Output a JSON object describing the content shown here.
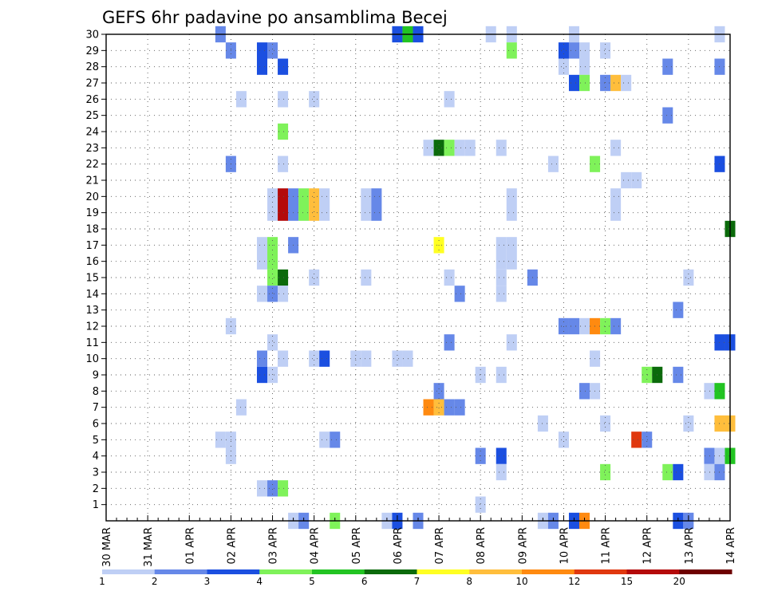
{
  "chart_data": {
    "type": "heatmap",
    "title": "GEFS 6hr padavine po ansamblima Becej",
    "xlabel": "",
    "ylabel": "",
    "x_ticks": [
      "30 MAR",
      "31 MAR",
      "01 APR",
      "02 APR",
      "03 APR",
      "04 APR",
      "05 APR",
      "06 APR",
      "07 APR",
      "08 APR",
      "09 APR",
      "10 APR",
      "11 APR",
      "12 APR",
      "13 APR",
      "14 APR"
    ],
    "time_steps": 60,
    "time_step_hours": 6,
    "y_range": [
      1,
      30
    ],
    "y_ticks": [
      1,
      2,
      3,
      4,
      5,
      6,
      7,
      8,
      9,
      10,
      11,
      12,
      13,
      14,
      15,
      16,
      17,
      18,
      19,
      20,
      21,
      22,
      23,
      24,
      25,
      26,
      27,
      28,
      29,
      30
    ],
    "grid": true,
    "legend_position": "bottom",
    "levels": [
      1,
      2,
      3,
      4,
      5,
      6,
      7,
      8,
      10,
      12,
      15,
      20
    ],
    "level_colors": [
      "#bfcff5",
      "#6688e8",
      "#1b4fe0",
      "#7ff25a",
      "#22c422",
      "#0b6a0b",
      "#ffff22",
      "#ffbe3c",
      "#ff8a10",
      "#e0380f",
      "#b40a0a",
      "#6e0000"
    ],
    "cells": [
      {
        "m": 30,
        "t": 11,
        "c": 2
      },
      {
        "m": 30,
        "t": 28,
        "c": 3
      },
      {
        "m": 30,
        "t": 29,
        "c": 5
      },
      {
        "m": 30,
        "t": 30,
        "c": 3
      },
      {
        "m": 30,
        "t": 37,
        "c": 1
      },
      {
        "m": 30,
        "t": 39,
        "c": 1
      },
      {
        "m": 30,
        "t": 45,
        "c": 1
      },
      {
        "m": 30,
        "t": 59,
        "c": 1
      },
      {
        "m": 29,
        "t": 12,
        "c": 2
      },
      {
        "m": 29,
        "t": 15,
        "c": 3
      },
      {
        "m": 29,
        "t": 16,
        "c": 2
      },
      {
        "m": 29,
        "t": 39,
        "c": 4
      },
      {
        "m": 29,
        "t": 44,
        "c": 3
      },
      {
        "m": 29,
        "t": 45,
        "c": 2
      },
      {
        "m": 29,
        "t": 46,
        "c": 1
      },
      {
        "m": 29,
        "t": 48,
        "c": 1
      },
      {
        "m": 28,
        "t": 15,
        "c": 3
      },
      {
        "m": 28,
        "t": 17,
        "c": 3
      },
      {
        "m": 28,
        "t": 44,
        "c": 1
      },
      {
        "m": 28,
        "t": 46,
        "c": 1
      },
      {
        "m": 28,
        "t": 54,
        "c": 2
      },
      {
        "m": 28,
        "t": 59,
        "c": 2
      },
      {
        "m": 27,
        "t": 45,
        "c": 3
      },
      {
        "m": 27,
        "t": 46,
        "c": 4
      },
      {
        "m": 27,
        "t": 48,
        "c": 2
      },
      {
        "m": 27,
        "t": 49,
        "c": 8
      },
      {
        "m": 27,
        "t": 50,
        "c": 1
      },
      {
        "m": 26,
        "t": 13,
        "c": 1
      },
      {
        "m": 26,
        "t": 17,
        "c": 1
      },
      {
        "m": 26,
        "t": 20,
        "c": 1
      },
      {
        "m": 26,
        "t": 33,
        "c": 1
      },
      {
        "m": 25,
        "t": 54,
        "c": 2
      },
      {
        "m": 24,
        "t": 17,
        "c": 4
      },
      {
        "m": 23,
        "t": 31,
        "c": 1
      },
      {
        "m": 23,
        "t": 32,
        "c": 6
      },
      {
        "m": 23,
        "t": 33,
        "c": 4
      },
      {
        "m": 23,
        "t": 34,
        "c": 1
      },
      {
        "m": 23,
        "t": 35,
        "c": 1
      },
      {
        "m": 23,
        "t": 38,
        "c": 1
      },
      {
        "m": 23,
        "t": 49,
        "c": 1
      },
      {
        "m": 22,
        "t": 12,
        "c": 2
      },
      {
        "m": 22,
        "t": 17,
        "c": 1
      },
      {
        "m": 22,
        "t": 43,
        "c": 1
      },
      {
        "m": 22,
        "t": 47,
        "c": 4
      },
      {
        "m": 22,
        "t": 59,
        "c": 3
      },
      {
        "m": 21,
        "t": 50,
        "c": 1
      },
      {
        "m": 21,
        "t": 51,
        "c": 1
      },
      {
        "m": 20,
        "t": 16,
        "c": 1
      },
      {
        "m": 20,
        "t": 17,
        "c": 11
      },
      {
        "m": 20,
        "t": 18,
        "c": 2
      },
      {
        "m": 20,
        "t": 19,
        "c": 4
      },
      {
        "m": 20,
        "t": 20,
        "c": 8
      },
      {
        "m": 20,
        "t": 21,
        "c": 1
      },
      {
        "m": 20,
        "t": 25,
        "c": 1
      },
      {
        "m": 20,
        "t": 26,
        "c": 2
      },
      {
        "m": 20,
        "t": 39,
        "c": 1
      },
      {
        "m": 20,
        "t": 49,
        "c": 1
      },
      {
        "m": 19,
        "t": 16,
        "c": 1
      },
      {
        "m": 19,
        "t": 17,
        "c": 11
      },
      {
        "m": 19,
        "t": 18,
        "c": 2
      },
      {
        "m": 19,
        "t": 19,
        "c": 4
      },
      {
        "m": 19,
        "t": 20,
        "c": 8
      },
      {
        "m": 19,
        "t": 21,
        "c": 1
      },
      {
        "m": 19,
        "t": 25,
        "c": 1
      },
      {
        "m": 19,
        "t": 26,
        "c": 2
      },
      {
        "m": 19,
        "t": 39,
        "c": 1
      },
      {
        "m": 19,
        "t": 49,
        "c": 1
      },
      {
        "m": 18,
        "t": 60,
        "c": 6
      },
      {
        "m": 17,
        "t": 15,
        "c": 1
      },
      {
        "m": 17,
        "t": 16,
        "c": 4
      },
      {
        "m": 17,
        "t": 18,
        "c": 2
      },
      {
        "m": 17,
        "t": 32,
        "c": 7
      },
      {
        "m": 17,
        "t": 38,
        "c": 1
      },
      {
        "m": 17,
        "t": 39,
        "c": 1
      },
      {
        "m": 16,
        "t": 15,
        "c": 1
      },
      {
        "m": 16,
        "t": 16,
        "c": 4
      },
      {
        "m": 16,
        "t": 38,
        "c": 1
      },
      {
        "m": 16,
        "t": 39,
        "c": 1
      },
      {
        "m": 15,
        "t": 16,
        "c": 4
      },
      {
        "m": 15,
        "t": 17,
        "c": 6
      },
      {
        "m": 15,
        "t": 20,
        "c": 1
      },
      {
        "m": 15,
        "t": 25,
        "c": 1
      },
      {
        "m": 15,
        "t": 33,
        "c": 1
      },
      {
        "m": 15,
        "t": 38,
        "c": 1
      },
      {
        "m": 15,
        "t": 41,
        "c": 2
      },
      {
        "m": 15,
        "t": 56,
        "c": 1
      },
      {
        "m": 14,
        "t": 15,
        "c": 1
      },
      {
        "m": 14,
        "t": 16,
        "c": 2
      },
      {
        "m": 14,
        "t": 17,
        "c": 1
      },
      {
        "m": 14,
        "t": 34,
        "c": 2
      },
      {
        "m": 14,
        "t": 38,
        "c": 1
      },
      {
        "m": 13,
        "t": 55,
        "c": 2
      },
      {
        "m": 12,
        "t": 12,
        "c": 1
      },
      {
        "m": 12,
        "t": 44,
        "c": 2
      },
      {
        "m": 12,
        "t": 45,
        "c": 2
      },
      {
        "m": 12,
        "t": 46,
        "c": 1
      },
      {
        "m": 12,
        "t": 47,
        "c": 9
      },
      {
        "m": 12,
        "t": 48,
        "c": 4
      },
      {
        "m": 12,
        "t": 49,
        "c": 2
      },
      {
        "m": 11,
        "t": 16,
        "c": 1
      },
      {
        "m": 11,
        "t": 33,
        "c": 2
      },
      {
        "m": 11,
        "t": 39,
        "c": 1
      },
      {
        "m": 11,
        "t": 59,
        "c": 3
      },
      {
        "m": 11,
        "t": 60,
        "c": 3
      },
      {
        "m": 10,
        "t": 15,
        "c": 2
      },
      {
        "m": 10,
        "t": 17,
        "c": 1
      },
      {
        "m": 10,
        "t": 20,
        "c": 1
      },
      {
        "m": 10,
        "t": 21,
        "c": 3
      },
      {
        "m": 10,
        "t": 24,
        "c": 1
      },
      {
        "m": 10,
        "t": 25,
        "c": 1
      },
      {
        "m": 10,
        "t": 28,
        "c": 1
      },
      {
        "m": 10,
        "t": 29,
        "c": 1
      },
      {
        "m": 10,
        "t": 47,
        "c": 1
      },
      {
        "m": 9,
        "t": 15,
        "c": 3
      },
      {
        "m": 9,
        "t": 16,
        "c": 1
      },
      {
        "m": 9,
        "t": 36,
        "c": 1
      },
      {
        "m": 9,
        "t": 38,
        "c": 1
      },
      {
        "m": 9,
        "t": 52,
        "c": 4
      },
      {
        "m": 9,
        "t": 53,
        "c": 6
      },
      {
        "m": 9,
        "t": 55,
        "c": 2
      },
      {
        "m": 8,
        "t": 32,
        "c": 2
      },
      {
        "m": 8,
        "t": 46,
        "c": 2
      },
      {
        "m": 8,
        "t": 47,
        "c": 1
      },
      {
        "m": 8,
        "t": 58,
        "c": 1
      },
      {
        "m": 8,
        "t": 59,
        "c": 5
      },
      {
        "m": 7,
        "t": 13,
        "c": 1
      },
      {
        "m": 7,
        "t": 31,
        "c": 9
      },
      {
        "m": 7,
        "t": 32,
        "c": 8
      },
      {
        "m": 7,
        "t": 33,
        "c": 2
      },
      {
        "m": 7,
        "t": 34,
        "c": 2
      },
      {
        "m": 6,
        "t": 42,
        "c": 1
      },
      {
        "m": 6,
        "t": 48,
        "c": 1
      },
      {
        "m": 6,
        "t": 56,
        "c": 1
      },
      {
        "m": 6,
        "t": 59,
        "c": 8
      },
      {
        "m": 6,
        "t": 60,
        "c": 8
      },
      {
        "m": 5,
        "t": 11,
        "c": 1
      },
      {
        "m": 5,
        "t": 12,
        "c": 1
      },
      {
        "m": 5,
        "t": 21,
        "c": 1
      },
      {
        "m": 5,
        "t": 22,
        "c": 2
      },
      {
        "m": 5,
        "t": 44,
        "c": 1
      },
      {
        "m": 5,
        "t": 51,
        "c": 10
      },
      {
        "m": 5,
        "t": 52,
        "c": 2
      },
      {
        "m": 4,
        "t": 12,
        "c": 1
      },
      {
        "m": 4,
        "t": 36,
        "c": 2
      },
      {
        "m": 4,
        "t": 38,
        "c": 3
      },
      {
        "m": 4,
        "t": 58,
        "c": 2
      },
      {
        "m": 4,
        "t": 59,
        "c": 1
      },
      {
        "m": 4,
        "t": 60,
        "c": 5
      },
      {
        "m": 3,
        "t": 38,
        "c": 1
      },
      {
        "m": 3,
        "t": 48,
        "c": 4
      },
      {
        "m": 3,
        "t": 54,
        "c": 4
      },
      {
        "m": 3,
        "t": 55,
        "c": 3
      },
      {
        "m": 3,
        "t": 58,
        "c": 1
      },
      {
        "m": 3,
        "t": 59,
        "c": 2
      },
      {
        "m": 2,
        "t": 15,
        "c": 1
      },
      {
        "m": 2,
        "t": 16,
        "c": 2
      },
      {
        "m": 2,
        "t": 17,
        "c": 4
      },
      {
        "m": 1,
        "t": 36,
        "c": 1
      },
      {
        "m": 0,
        "t": 18,
        "c": 1
      },
      {
        "m": 0,
        "t": 19,
        "c": 2
      },
      {
        "m": 0,
        "t": 22,
        "c": 4
      },
      {
        "m": 0,
        "t": 27,
        "c": 1
      },
      {
        "m": 0,
        "t": 28,
        "c": 3
      },
      {
        "m": 0,
        "t": 30,
        "c": 2
      },
      {
        "m": 0,
        "t": 42,
        "c": 1
      },
      {
        "m": 0,
        "t": 43,
        "c": 2
      },
      {
        "m": 0,
        "t": 45,
        "c": 3
      },
      {
        "m": 0,
        "t": 46,
        "c": 9
      },
      {
        "m": 0,
        "t": 55,
        "c": 3
      },
      {
        "m": 0,
        "t": 56,
        "c": 2
      }
    ]
  }
}
